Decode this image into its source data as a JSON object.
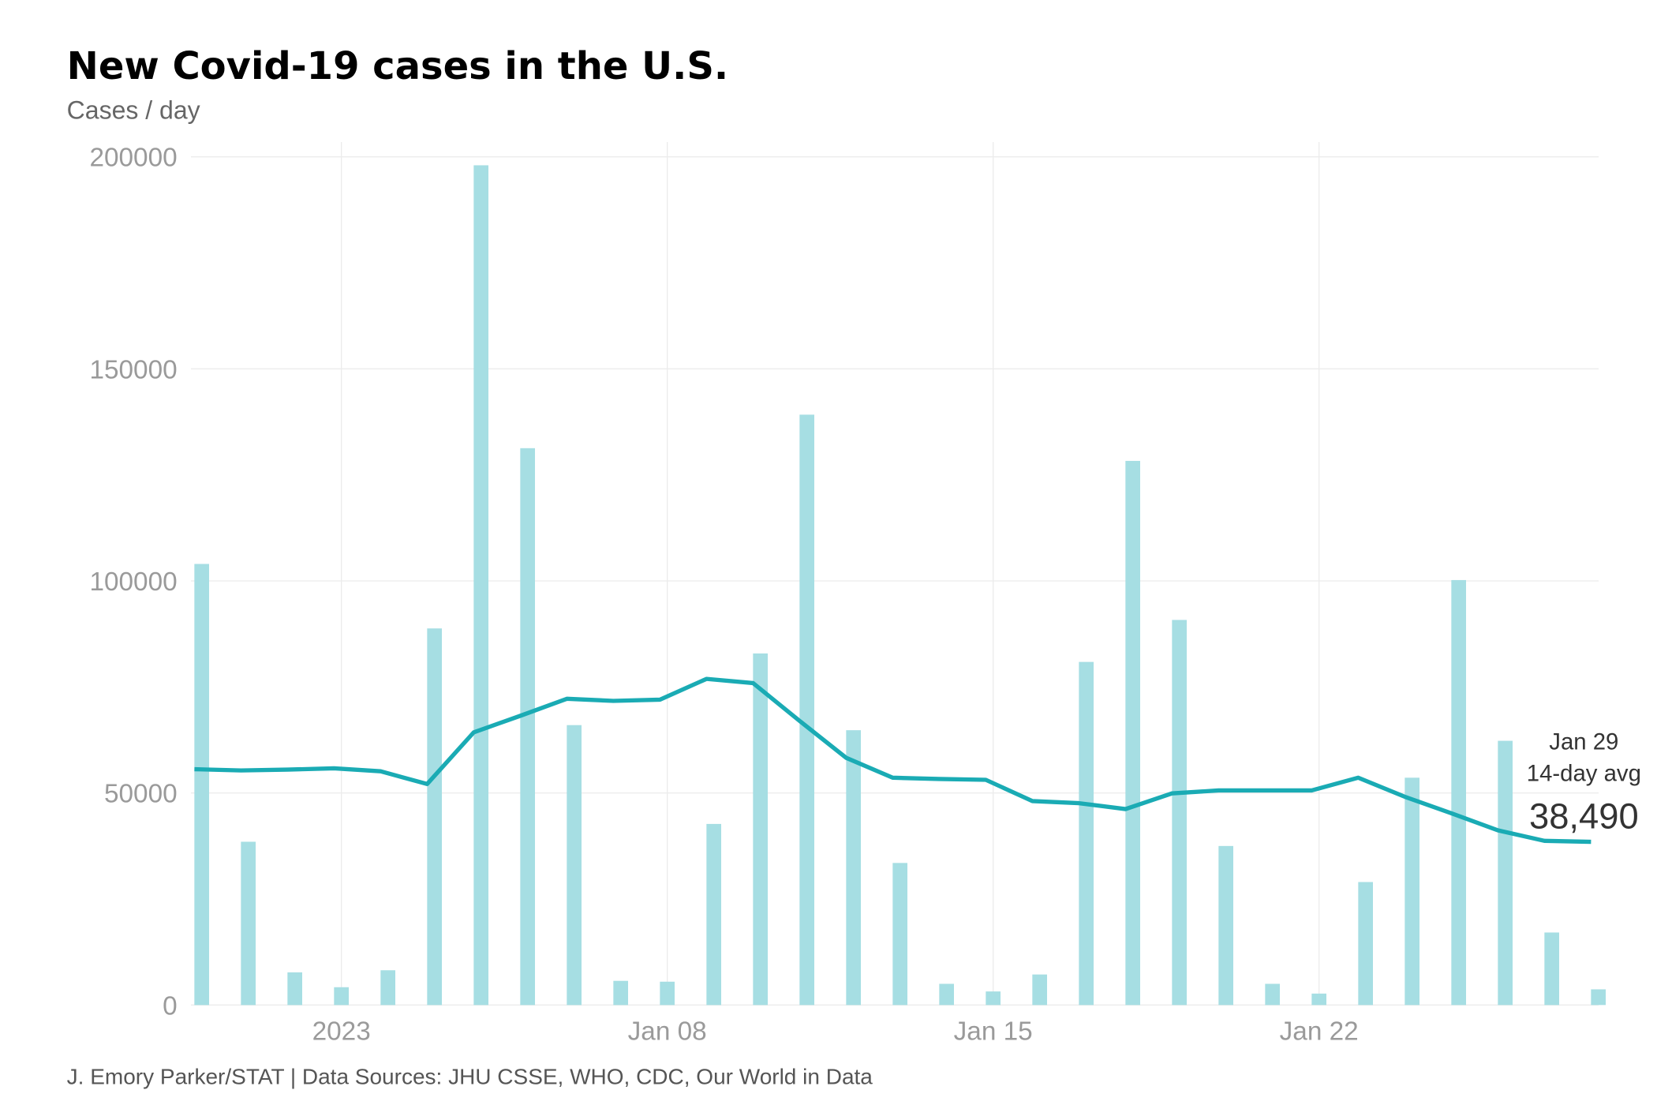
{
  "chart_data": {
    "type": "bar",
    "title": "New Covid-19 cases in the U.S.",
    "subtitle": "Cases / day",
    "source": "J. Emory Parker/STAT | Data Sources: JHU CSSE, WHO, CDC, Our World in Data",
    "ylim": [
      0,
      200000
    ],
    "yticks": [
      "0",
      "50000",
      "100000",
      "150000",
      "200000"
    ],
    "xticks": [
      {
        "label": "2023",
        "date": "2023-01-01"
      },
      {
        "label": "Jan 08",
        "date": "2023-01-08"
      },
      {
        "label": "Jan 15",
        "date": "2023-01-15"
      },
      {
        "label": "Jan 22",
        "date": "2023-01-22"
      }
    ],
    "grid": true,
    "x": [
      "2022-12-29",
      "2022-12-30",
      "2022-12-31",
      "2023-01-01",
      "2023-01-02",
      "2023-01-03",
      "2023-01-04",
      "2023-01-05",
      "2023-01-06",
      "2023-01-07",
      "2023-01-08",
      "2023-01-09",
      "2023-01-10",
      "2023-01-11",
      "2023-01-12",
      "2023-01-13",
      "2023-01-14",
      "2023-01-15",
      "2023-01-16",
      "2023-01-17",
      "2023-01-18",
      "2023-01-19",
      "2023-01-20",
      "2023-01-21",
      "2023-01-22",
      "2023-01-23",
      "2023-01-24",
      "2023-01-25",
      "2023-01-26",
      "2023-01-27",
      "2023-01-28"
    ],
    "series": [
      {
        "type": "bar",
        "color": "#a6dee3",
        "values": [
          104000,
          38500,
          7700,
          4200,
          8200,
          88800,
          198000,
          131300,
          66000,
          5700,
          5500,
          42700,
          82900,
          139200,
          64800,
          33500,
          5000,
          3200,
          7200,
          80900,
          128300,
          90800,
          37500,
          5000,
          2700,
          29000,
          53600,
          100200,
          62300,
          17100,
          3700
        ]
      },
      {
        "type": "line",
        "color": "#1aabb4",
        "values": [
          55600,
          55300,
          55500,
          55800,
          55100,
          52100,
          64300,
          68200,
          72200,
          71700,
          72000,
          76900,
          75900,
          67000,
          58300,
          53600,
          53300,
          53100,
          48100,
          47600,
          46200,
          49900,
          50600,
          50600,
          50600,
          53600,
          49100,
          45200,
          41200,
          38700,
          38490
        ]
      }
    ],
    "annotation": {
      "date_label": "Jan 29",
      "label": "14-day avg",
      "value": "38,490"
    }
  }
}
